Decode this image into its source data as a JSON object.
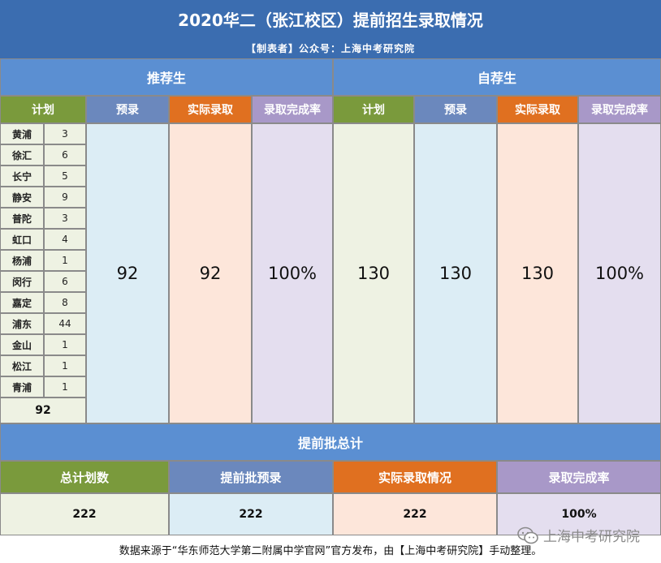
{
  "title": "2020华二（张江校区）提前招生录取情况",
  "subtitle": "【制表者】公众号：上海中考研究院",
  "recommend": {
    "section": "推荐生",
    "headers": [
      "计划",
      "预录",
      "实际录取",
      "录取完成率"
    ],
    "districts": [
      {
        "name": "黄浦",
        "value": "3"
      },
      {
        "name": "徐汇",
        "value": "6"
      },
      {
        "name": "长宁",
        "value": "5"
      },
      {
        "name": "静安",
        "value": "9"
      },
      {
        "name": "普陀",
        "value": "3"
      },
      {
        "name": "虹口",
        "value": "4"
      },
      {
        "name": "杨浦",
        "value": "1"
      },
      {
        "name": "闵行",
        "value": "6"
      },
      {
        "name": "嘉定",
        "value": "8"
      },
      {
        "name": "浦东",
        "value": "44"
      },
      {
        "name": "金山",
        "value": "1"
      },
      {
        "name": "松江",
        "value": "1"
      },
      {
        "name": "青浦",
        "value": "1"
      }
    ],
    "plan_total": "92",
    "prelim": "92",
    "actual": "92",
    "rate": "100%"
  },
  "self_rec": {
    "section": "自荐生",
    "headers": [
      "计划",
      "预录",
      "实际录取",
      "录取完成率"
    ],
    "plan": "130",
    "prelim": "130",
    "actual": "130",
    "rate": "100%"
  },
  "total": {
    "section": "提前批总计",
    "headers": [
      "总计划数",
      "提前批预录",
      "实际录取情况",
      "录取完成率"
    ],
    "values": [
      "222",
      "222",
      "222",
      "100%"
    ]
  },
  "footer": "数据来源于“华东师范大学第二附属中学官网”官方发布，由【上海中考研究院】手动整理。",
  "watermark": "上海中考研究院",
  "colors": {
    "title_bg": "#3b6db0",
    "section_bg": "#5b8fd2",
    "green": "#7a9a3c",
    "blue": "#6b88bd",
    "orange": "#e07020",
    "purple": "#a898c8"
  }
}
